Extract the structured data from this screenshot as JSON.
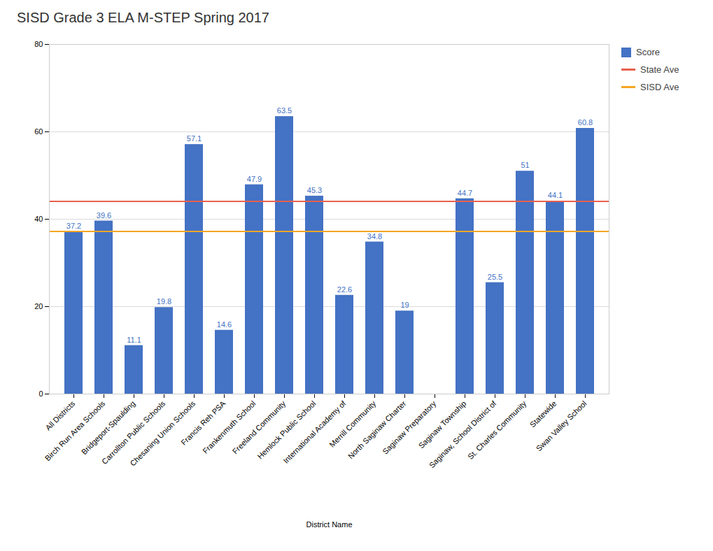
{
  "chart_data": {
    "type": "bar",
    "title": "SISD Grade 3 ELA M-STEP Spring 2017",
    "xlabel": "District Name",
    "categories": [
      "All Districts",
      "Birch Run Area Schools",
      "Bridgeport-Spaulding",
      "Carrollton Public Schools",
      "Chesaning Union Schools",
      "Francis Reh PSA",
      "Frankenmuth School",
      "Freeland Community",
      "Hemlock Public School",
      "International Academy of",
      "Merrill Community",
      "North Saginaw Charter",
      "Saginaw Preparatory",
      "Saginaw Township",
      "Saginaw, School District of",
      "St. Charles Community",
      "Statewide",
      "Swan Valley School"
    ],
    "series": [
      {
        "name": "Score",
        "type": "bar",
        "color": "#4472c4",
        "values": [
          37.2,
          39.6,
          11.1,
          19.8,
          57.1,
          14.6,
          47.9,
          63.5,
          45.3,
          22.6,
          34.8,
          19,
          0,
          44.7,
          25.5,
          51,
          44.1,
          60.8
        ],
        "value_labels": [
          "37.2",
          "39.6",
          "11.1",
          "19.8",
          "57.1",
          "14.6",
          "47.9",
          "63.5",
          "45.3",
          "22.6",
          "34.8",
          "19",
          null,
          "44.7",
          "25.5",
          "51",
          "44.1",
          "60.8"
        ]
      }
    ],
    "reference_lines": [
      {
        "name": "State Ave",
        "value": 44.1,
        "color": "#e8604c"
      },
      {
        "name": "SISD Ave",
        "value": 37.2,
        "color": "#f5a623"
      }
    ],
    "ylim": [
      0,
      80
    ],
    "yticks": [
      0,
      20,
      40,
      60,
      80
    ],
    "grid": true,
    "data_labels": true,
    "legend": "upper right"
  }
}
